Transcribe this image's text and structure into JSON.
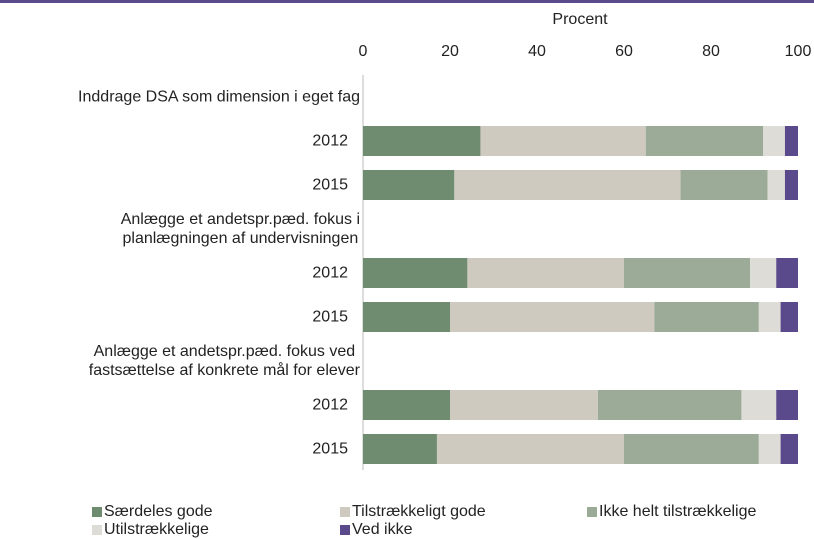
{
  "chart_data": {
    "type": "stacked-barh",
    "xlabel": "Procent",
    "categories": [
      "Inddrage DSA som dimension i eget fag",
      "2012",
      "2015",
      "Anlægge et andetspr.pæd. fokus i\nplanlægningen af undervisningen",
      "2012",
      "2015",
      "Anlægge et andetspr.pæd. fokus ved\nfastsættelse af konkrete mål for elever",
      "2012",
      "2015"
    ],
    "series": [
      {
        "name": "Særdeles gode",
        "color": "#6f8c70",
        "values": [
          null,
          27,
          21,
          null,
          24,
          20,
          null,
          20,
          17
        ]
      },
      {
        "name": "Tilstrækkeligt gode",
        "color": "#cfcac0",
        "values": [
          null,
          38,
          52,
          null,
          36,
          47,
          null,
          34,
          43
        ]
      },
      {
        "name": "Ikke helt tilstrækkelige",
        "color": "#9bab97",
        "values": [
          null,
          27,
          20,
          null,
          29,
          24,
          null,
          33,
          31
        ]
      },
      {
        "name": "Utilstrækkelige",
        "color": "#dedcd7",
        "values": [
          null,
          5,
          4,
          null,
          6,
          5,
          null,
          8,
          5
        ]
      },
      {
        "name": "Ved ikke",
        "color": "#5b4a8b",
        "values": [
          null,
          3,
          3,
          null,
          5,
          4,
          null,
          5,
          4
        ]
      }
    ],
    "xlim": [
      0,
      100
    ],
    "xticks": [
      0,
      20,
      40,
      60,
      80,
      100
    ]
  }
}
